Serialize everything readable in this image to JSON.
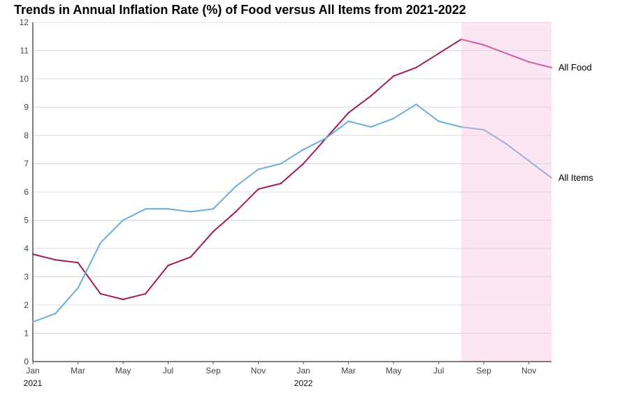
{
  "chart_data": {
    "type": "line",
    "title": "Trends in Annual Inflation Rate (%) of Food versus All Items from 2021-2022",
    "xlabel": "",
    "ylabel": "",
    "ylim": [
      0,
      12
    ],
    "yticks": [
      0,
      1,
      2,
      3,
      4,
      5,
      6,
      7,
      8,
      9,
      10,
      11,
      12
    ],
    "grid": true,
    "legend": "none (series labeled directly at right end of lines)",
    "x": [
      "2021-01",
      "2021-02",
      "2021-03",
      "2021-04",
      "2021-05",
      "2021-06",
      "2021-07",
      "2021-08",
      "2021-09",
      "2021-10",
      "2021-11",
      "2021-12",
      "2022-01",
      "2022-02",
      "2022-03",
      "2022-04",
      "2022-05",
      "2022-06",
      "2022-07",
      "2022-08",
      "2022-09",
      "2022-10",
      "2022-11",
      "2022-12"
    ],
    "x_tick_labels": [
      {
        "month": "2021-01",
        "label": "Jan"
      },
      {
        "month": "2021-03",
        "label": "Mar"
      },
      {
        "month": "2021-05",
        "label": "May"
      },
      {
        "month": "2021-07",
        "label": "Jul"
      },
      {
        "month": "2021-09",
        "label": "Sep"
      },
      {
        "month": "2021-11",
        "label": "Nov"
      },
      {
        "month": "2022-01",
        "label": "Jan"
      },
      {
        "month": "2022-03",
        "label": "Mar"
      },
      {
        "month": "2022-05",
        "label": "May"
      },
      {
        "month": "2022-07",
        "label": "Jul"
      },
      {
        "month": "2022-09",
        "label": "Sep"
      },
      {
        "month": "2022-11",
        "label": "Nov"
      }
    ],
    "year_labels": [
      {
        "month": "2021-01",
        "label": "2021"
      },
      {
        "month": "2022-01",
        "label": "2022"
      }
    ],
    "series": [
      {
        "name": "All Food",
        "color": "#a3195b",
        "forecast_color": "#d55ca3",
        "values": [
          3.8,
          3.6,
          3.5,
          2.4,
          2.2,
          2.4,
          3.4,
          3.7,
          4.6,
          5.3,
          6.1,
          6.3,
          7.0,
          7.9,
          8.8,
          9.4,
          10.1,
          10.4,
          10.9,
          11.4,
          11.2,
          10.9,
          10.6,
          10.4
        ]
      },
      {
        "name": "All Items",
        "color": "#6baed6",
        "forecast_color": "#a1aed8",
        "values": [
          1.4,
          1.7,
          2.6,
          4.2,
          5.0,
          5.4,
          5.4,
          5.3,
          5.4,
          6.2,
          6.8,
          7.0,
          7.5,
          7.9,
          8.5,
          8.3,
          8.6,
          9.1,
          8.5,
          8.3,
          8.2,
          7.7,
          7.1,
          6.5
        ]
      }
    ],
    "shaded_region": {
      "from": "2022-08",
      "to": "2022-12",
      "color": "#fde6f3"
    },
    "colors": {
      "grid": "#d9d9d9",
      "axis": "#000000"
    }
  }
}
